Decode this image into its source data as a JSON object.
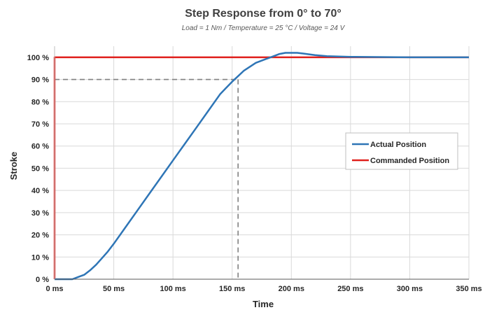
{
  "chart_data": {
    "type": "line",
    "title": "Step Response from 0° to 70°",
    "subtitle": "Load = 1 Nm / Temperature = 25 °C / Voltage = 24 V",
    "xlabel": "Time",
    "ylabel": "Stroke",
    "xlim": [
      0,
      350
    ],
    "ylim": [
      0,
      105
    ],
    "x_ticks": [
      0,
      50,
      100,
      150,
      200,
      250,
      300,
      350
    ],
    "x_tick_labels": [
      "0 ms",
      "50 ms",
      "100 ms",
      "150 ms",
      "200 ms",
      "250 ms",
      "300 ms",
      "350 ms"
    ],
    "y_ticks": [
      0,
      10,
      20,
      30,
      40,
      50,
      60,
      70,
      80,
      90,
      100
    ],
    "y_tick_labels": [
      "0 %",
      "10 %",
      "20 %",
      "30 %",
      "40 %",
      "50 %",
      "60 %",
      "70 %",
      "80 %",
      "90 %",
      "100 %"
    ],
    "grid": true,
    "legend_position": "right",
    "series": [
      {
        "name": "Actual Position",
        "color": "#2E75B6",
        "x": [
          0,
          10,
          15,
          20,
          25,
          30,
          35,
          40,
          45,
          50,
          60,
          70,
          80,
          90,
          100,
          110,
          120,
          130,
          140,
          150,
          155,
          160,
          170,
          180,
          185,
          190,
          195,
          200,
          205,
          210,
          220,
          230,
          250,
          300,
          350
        ],
        "y": [
          0,
          0,
          0,
          1,
          2,
          4,
          6.5,
          9.5,
          12.5,
          16,
          23.5,
          31,
          38.5,
          46,
          53.5,
          61,
          68.5,
          76,
          83.5,
          89,
          91.5,
          94,
          97.5,
          99.5,
          100.5,
          101.5,
          102,
          102,
          102,
          101.7,
          101,
          100.5,
          100.2,
          100,
          100
        ]
      },
      {
        "name": "Commanded Position",
        "color": "#E0201C",
        "x": [
          0,
          0,
          350
        ],
        "y": [
          0,
          100,
          100
        ]
      }
    ],
    "annotations": [
      {
        "type": "reference-line",
        "x": 155,
        "y": 90,
        "color": "#808080",
        "style": "dashed"
      }
    ]
  }
}
